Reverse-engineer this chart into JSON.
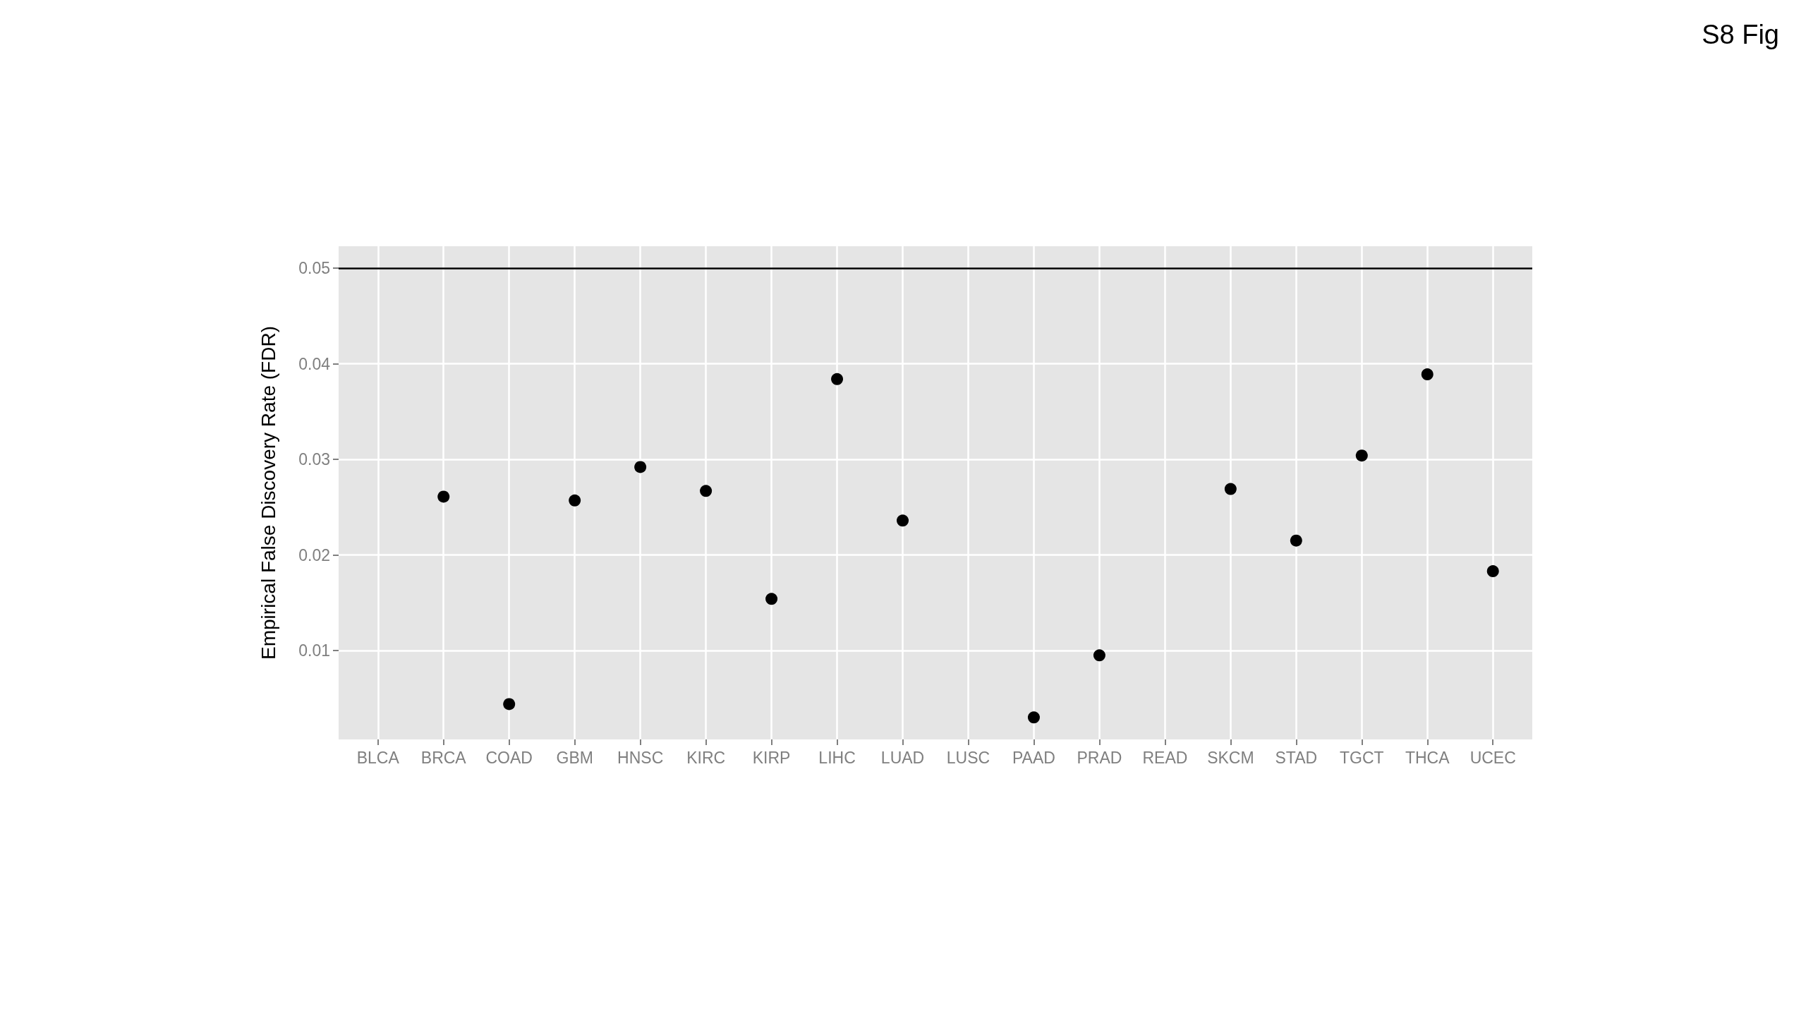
{
  "chart_data": {
    "type": "scatter",
    "ylabel": "Empirical False Discovery Rate (FDR)",
    "annotations": [
      "S8 Fig"
    ],
    "categories": [
      "BLCA",
      "BRCA",
      "COAD",
      "GBM",
      "HNSC",
      "KIRC",
      "KIRP",
      "LIHC",
      "LUAD",
      "LUSC",
      "PAAD",
      "PRAD",
      "READ",
      "SKCM",
      "STAD",
      "TGCT",
      "THCA",
      "UCEC"
    ],
    "series": [
      {
        "color": "#000000",
        "values": [
          null,
          0.0261,
          0.0044,
          0.0257,
          0.0292,
          0.0267,
          0.0154,
          0.0384,
          0.0236,
          null,
          0.003,
          0.0095,
          null,
          0.0269,
          0.0215,
          0.0304,
          0.0389,
          0.0183
        ]
      }
    ],
    "ylim": [
      0.0007,
      0.0523
    ],
    "yticks": [
      0.01,
      0.02,
      0.03,
      0.04,
      0.05
    ],
    "grid": true,
    "marker": "circle",
    "ref_lines": [
      {
        "axis": "y",
        "value": 0.05,
        "color": "#000000"
      }
    ]
  }
}
